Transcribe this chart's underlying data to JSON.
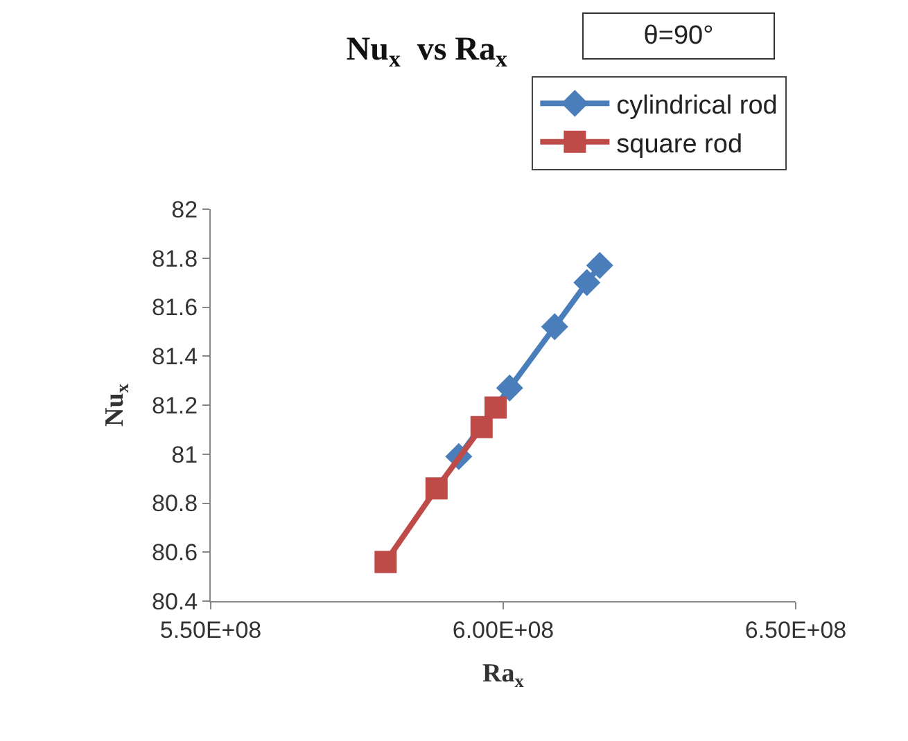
{
  "chart_data": {
    "type": "line",
    "title": "Nu$_{x}$  vs Ra$_{x}$",
    "xlabel": "Ra$_{x}$",
    "ylabel": "Nu$_{x}$",
    "annotations": [
      "θ=90°"
    ],
    "series": [
      {
        "name": "cylindrical rod",
        "color": "#4a7ebb",
        "marker": "diamond",
        "x": [
          592400000,
          601100000,
          608800000,
          614300000,
          616500000
        ],
        "values": [
          80.99,
          81.27,
          81.52,
          81.7,
          81.77
        ]
      },
      {
        "name": "square rod",
        "color": "#be4b48",
        "marker": "square",
        "x": [
          579900000,
          588600000,
          596300000,
          598700000
        ],
        "values": [
          80.56,
          80.86,
          81.11,
          81.19
        ]
      }
    ],
    "xlim": [
      550000000,
      650000000
    ],
    "xticks": [
      {
        "value": 550000000,
        "label": "5.50E+08"
      },
      {
        "value": 600000000,
        "label": "6.00E+08"
      },
      {
        "value": 650000000,
        "label": "6.50E+08"
      }
    ],
    "ylim": [
      80.4,
      82
    ],
    "yticks": [
      80.4,
      80.6,
      80.8,
      81,
      81.2,
      81.4,
      81.6,
      81.8,
      82
    ],
    "legend": "top right",
    "line_style": "solid"
  }
}
